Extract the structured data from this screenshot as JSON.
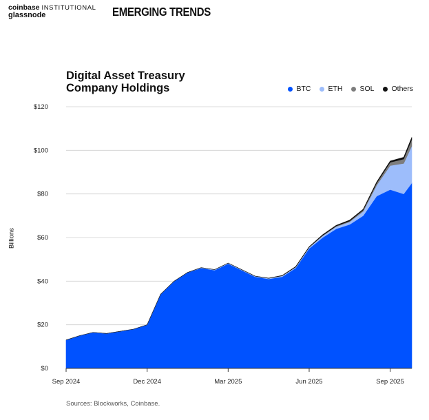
{
  "header": {
    "brand_primary": "coinbase",
    "brand_secondary": "INSTITUTIONAL",
    "brand_partner": "glassnode",
    "report_title": "EMERGING TRENDS"
  },
  "source_note": "Sources: Blockworks, Coinbase.",
  "colors": {
    "BTC": "#0052ff",
    "ETH": "#9dbdfb",
    "SOL": "#7d7d7d",
    "Others": "#111111"
  },
  "chart_data": {
    "type": "area",
    "stacked": true,
    "title": "Digital Asset Treasury Company Holdings",
    "ylabel": "Billions",
    "xlabel": "",
    "ylim": [
      0,
      120
    ],
    "y_ticks": [
      "$0",
      "$20",
      "$40",
      "$60",
      "$80",
      "$100",
      "$120"
    ],
    "x_ticks": [
      "Sep 2024",
      "Dec 2024",
      "Mar 2025",
      "Jun 2025",
      "Sep 2025"
    ],
    "x_months": [
      0,
      0.5,
      1,
      1.5,
      2,
      2.5,
      3,
      3.5,
      4,
      4.5,
      5,
      5.5,
      6,
      6.5,
      7,
      7.5,
      8,
      8.5,
      9,
      9.5,
      10,
      10.5,
      11,
      11.5,
      12,
      12.5,
      12.8
    ],
    "legend_position": "top-right",
    "grid": true,
    "series": [
      {
        "name": "BTC",
        "values": [
          13,
          15,
          16.5,
          16,
          17,
          18,
          20,
          34,
          40,
          44,
          46,
          45,
          48,
          45,
          42,
          41,
          42,
          46,
          55,
          60,
          64,
          66,
          70,
          79,
          82,
          80,
          85
        ]
      },
      {
        "name": "ETH",
        "values": [
          0,
          0,
          0,
          0,
          0,
          0,
          0,
          0,
          0,
          0,
          0.2,
          0.3,
          0.3,
          0.3,
          0.3,
          0.3,
          0.4,
          0.4,
          0.5,
          0.8,
          1,
          1.2,
          2,
          5,
          11,
          14,
          17
        ]
      },
      {
        "name": "SOL",
        "values": [
          0,
          0,
          0,
          0,
          0,
          0,
          0,
          0,
          0,
          0,
          0,
          0,
          0,
          0,
          0,
          0,
          0.1,
          0.1,
          0.1,
          0.2,
          0.3,
          0.4,
          0.6,
          1,
          1.5,
          2,
          3
        ]
      },
      {
        "name": "Others",
        "values": [
          0,
          0,
          0,
          0,
          0,
          0,
          0,
          0,
          0,
          0,
          0,
          0,
          0,
          0,
          0,
          0.1,
          0.1,
          0.2,
          0.2,
          0.3,
          0.3,
          0.4,
          0.4,
          0.5,
          0.6,
          0.8,
          1
        ]
      }
    ]
  }
}
